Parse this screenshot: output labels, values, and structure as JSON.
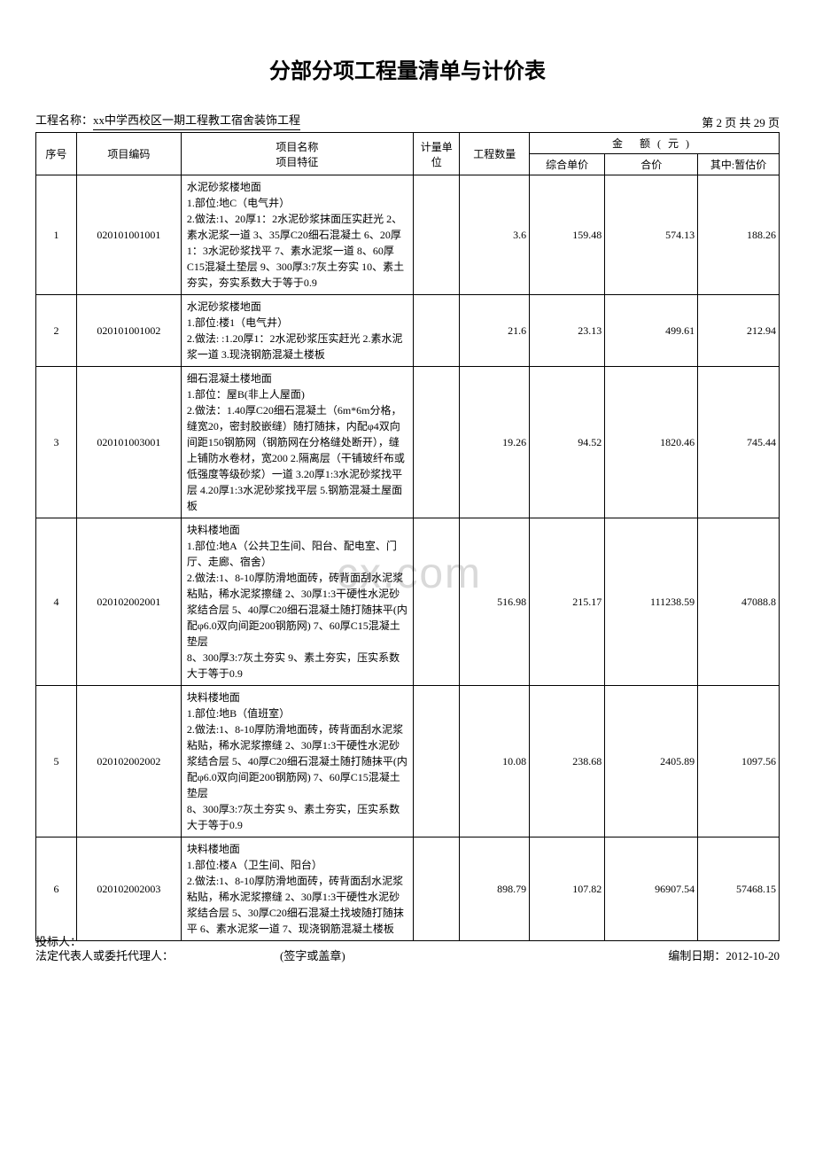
{
  "title": "分部分项工程量清单与计价表",
  "projectLabel": "工程名称：",
  "projectName": "xx中学西校区一期工程教工宿舍装饰工程",
  "pageInfo": "第 2 页 共 29 页",
  "watermark": "cx.com",
  "headers": {
    "seq": "序号",
    "code": "项目编码",
    "name": "项目名称",
    "feature": "项目特征",
    "unit": "计量单位",
    "qty": "工程数量",
    "amount": "金  额(元)",
    "unitPrice": "综合单价",
    "total": "合价",
    "estimate": "其中:暂估价"
  },
  "rows": [
    {
      "seq": "1",
      "code": "020101001001",
      "desc": "水泥砂浆楼地面\n1.部位:地C（电气井）\n2.做法:1、20厚1：2水泥砂浆抹面压实赶光 2、素水泥浆一道 3、35厚C20细石混凝土 6、20厚1：3水泥砂浆找平 7、素水泥浆一道 8、60厚C15混凝土垫层 9、300厚3:7灰土夯实 10、素土夯实，夯实系数大于等于0.9",
      "unit": "",
      "qty": "3.6",
      "unitPrice": "159.48",
      "total": "574.13",
      "estimate": "188.26"
    },
    {
      "seq": "2",
      "code": "020101001002",
      "desc": "水泥砂浆楼地面\n1.部位:楼1（电气井）\n2.做法: :1.20厚1：2水泥砂浆压实赶光 2.素水泥浆一道 3.现浇钢筋混凝土楼板",
      "unit": "",
      "qty": "21.6",
      "unitPrice": "23.13",
      "total": "499.61",
      "estimate": "212.94"
    },
    {
      "seq": "3",
      "code": "020101003001",
      "desc": "细石混凝土楼地面\n1.部位：屋B(非上人屋面)\n2.做法：1.40厚C20细石混凝土（6m*6m分格，缝宽20，密封胶嵌缝）随打随抹，内配φ4双向间距150钢筋网（钢筋网在分格缝处断开），缝上铺防水卷材，宽200 2.隔离层（干铺玻纤布或低强度等级砂浆）一道 3.20厚1:3水泥砂浆找平层 4.20厚1:3水泥砂浆找平层 5.钢筋混凝土屋面板",
      "unit": "",
      "qty": "19.26",
      "unitPrice": "94.52",
      "total": "1820.46",
      "estimate": "745.44"
    },
    {
      "seq": "4",
      "code": "020102002001",
      "desc": "块料楼地面\n1.部位:地A（公共卫生间、阳台、配电室、门厅、走廊、宿舍）\n2.做法:1、8-10厚防滑地面砖，砖背面刮水泥浆粘贴，稀水泥浆擦缝 2、30厚1:3干硬性水泥砂浆结合层 5、40厚C20细石混凝土随打随抹平(内配φ6.0双向间距200钢筋网) 7、60厚C15混凝土垫层\n8、300厚3:7灰土夯实  9、素土夯实，压实系数大于等于0.9",
      "unit": "",
      "qty": "516.98",
      "unitPrice": "215.17",
      "total": "111238.59",
      "estimate": "47088.8"
    },
    {
      "seq": "5",
      "code": "020102002002",
      "desc": "块料楼地面\n1.部位:地B（值班室）\n2.做法:1、8-10厚防滑地面砖，砖背面刮水泥浆粘贴，稀水泥浆擦缝 2、30厚1:3干硬性水泥砂浆结合层 5、40厚C20细石混凝土随打随抹平(内配φ6.0双向间距200钢筋网) 7、60厚C15混凝土垫层\n8、300厚3:7灰土夯实  9、素土夯实，压实系数大于等于0.9",
      "unit": "",
      "qty": "10.08",
      "unitPrice": "238.68",
      "total": "2405.89",
      "estimate": "1097.56"
    },
    {
      "seq": "6",
      "code": "020102002003",
      "desc": "块料楼地面\n1.部位:楼A（卫生间、阳台）\n2.做法:1、8-10厚防滑地面砖，砖背面刮水泥浆粘贴，稀水泥浆擦缝 2、30厚1:3干硬性水泥砂浆结合层 5、30厚C20细石混凝土找坡随打随抹平 6、素水泥浆一道 7、现浇钢筋混凝土楼板",
      "unit": "",
      "qty": "898.79",
      "unitPrice": "107.82",
      "total": "96907.54",
      "estimate": "57468.15"
    }
  ],
  "footer": {
    "bidder": "投标人：",
    "legalRep": "法定代表人或委托代理人：",
    "signature": "(签字或盖章)",
    "dateLabel": "编制日期：",
    "date": "2012-10-20"
  }
}
